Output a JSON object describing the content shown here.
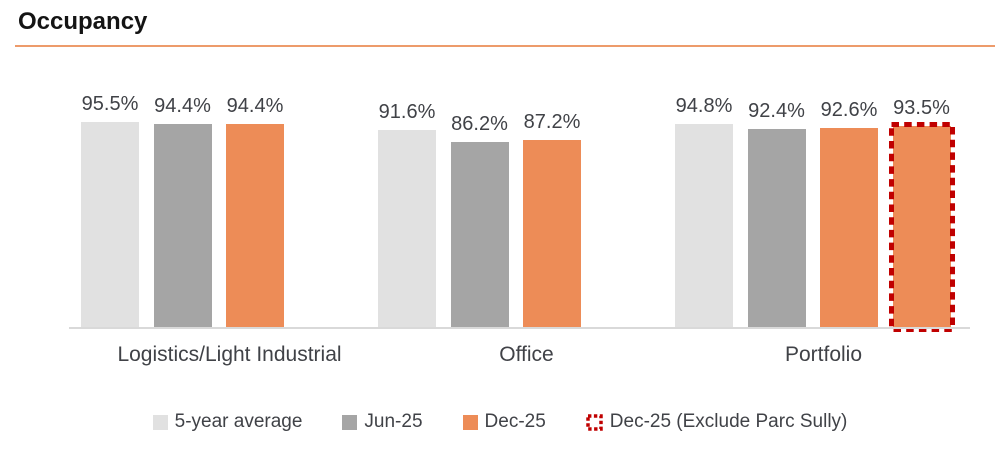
{
  "header": {
    "title": "Occupancy"
  },
  "colors": {
    "title_text": "#141414",
    "title_underline": "#ED9B6B",
    "axis_baseline": "#D9D9D9",
    "label_text": "#404247",
    "series_5yr": "#E1E1E1",
    "series_jun25": "#A5A5A5",
    "series_dec25": "#ED8C57",
    "series_dec25_exclude_border": "#C00000"
  },
  "chart_data": {
    "type": "bar",
    "title": "Occupancy",
    "categories": [
      "Logistics/Light Industrial",
      "Office",
      "Portfolio"
    ],
    "series": [
      {
        "name": "5-year average",
        "color": "#E1E1E1",
        "values": [
          95.5,
          91.6,
          94.8
        ]
      },
      {
        "name": "Jun-25",
        "color": "#A5A5A5",
        "values": [
          94.4,
          86.2,
          92.4
        ]
      },
      {
        "name": "Dec-25",
        "color": "#ED8C57",
        "values": [
          94.4,
          87.2,
          92.6
        ]
      },
      {
        "name": "Dec-25 (Exclude Parc Sully)",
        "color": "#ED8C57",
        "border_color": "#C00000",
        "border_style": "dashed",
        "values": [
          null,
          null,
          93.5
        ]
      }
    ],
    "data_labels": [
      [
        "95.5%",
        "94.4%",
        "94.4%"
      ],
      [
        "91.6%",
        "86.2%",
        "87.2%"
      ],
      [
        "94.8%",
        "92.4%",
        "92.6%",
        "93.5%"
      ]
    ],
    "value_suffix": "%",
    "ylim": [
      0,
      100
    ],
    "grid": false,
    "legend_position": "bottom"
  }
}
